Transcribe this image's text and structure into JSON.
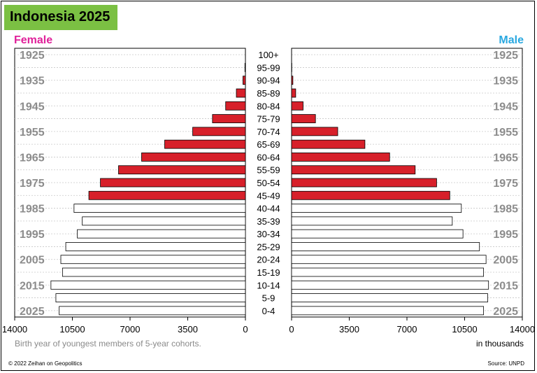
{
  "header": {
    "title": "Indonesia 2025",
    "female_label": "Female",
    "male_label": "Male"
  },
  "footer": {
    "note": "Birth year of youngest members of 5-year cohorts.",
    "unit": "in thousands",
    "copyright": "© 2022 Zeihan on Geopolitics",
    "source": "Source: UNPD"
  },
  "colors": {
    "title_bg": "#7bc043",
    "female_label": "#e0219a",
    "male_label": "#29a8e0",
    "older_bar": "#d7202a",
    "younger_bar": "#ffffff",
    "year_label": "#8c8c8c"
  },
  "chart_data": {
    "type": "bar",
    "orientation": "horizontal",
    "layout": "population-pyramid",
    "categories": [
      "100+",
      "95-99",
      "90-94",
      "85-89",
      "80-84",
      "75-79",
      "70-74",
      "65-69",
      "60-64",
      "55-59",
      "50-54",
      "45-49",
      "40-44",
      "35-39",
      "30-34",
      "25-29",
      "20-24",
      "15-19",
      "10-14",
      "5-9",
      "0-4"
    ],
    "series": [
      {
        "name": "Female",
        "values": [
          5,
          30,
          150,
          550,
          1200,
          2000,
          3200,
          4900,
          6300,
          7700,
          8800,
          9500,
          10400,
          9900,
          10200,
          10900,
          11200,
          11100,
          11800,
          11500,
          11300
        ]
      },
      {
        "name": "Male",
        "values": [
          3,
          15,
          80,
          250,
          700,
          1450,
          2800,
          4450,
          5950,
          7500,
          8800,
          9600,
          10300,
          9750,
          10400,
          11400,
          11800,
          11650,
          11950,
          11900,
          11650
        ]
      }
    ],
    "highlight_colors": [
      "#d7202a",
      "#d7202a",
      "#d7202a",
      "#d7202a",
      "#d7202a",
      "#d7202a",
      "#d7202a",
      "#d7202a",
      "#d7202a",
      "#d7202a",
      "#d7202a",
      "#d7202a",
      "#ffffff",
      "#ffffff",
      "#ffffff",
      "#ffffff",
      "#ffffff",
      "#ffffff",
      "#ffffff",
      "#ffffff",
      "#ffffff"
    ],
    "xlim": [
      0,
      14000
    ],
    "female_ticks": [
      14000,
      10500,
      7000,
      3500,
      0
    ],
    "male_ticks": [
      0,
      3500,
      7000,
      10500,
      14000
    ],
    "year_labels": [
      "1925",
      "1935",
      "1945",
      "1955",
      "1965",
      "1975",
      "1985",
      "1995",
      "2005",
      "2015",
      "2025"
    ],
    "grid": "dashed horizontal"
  }
}
